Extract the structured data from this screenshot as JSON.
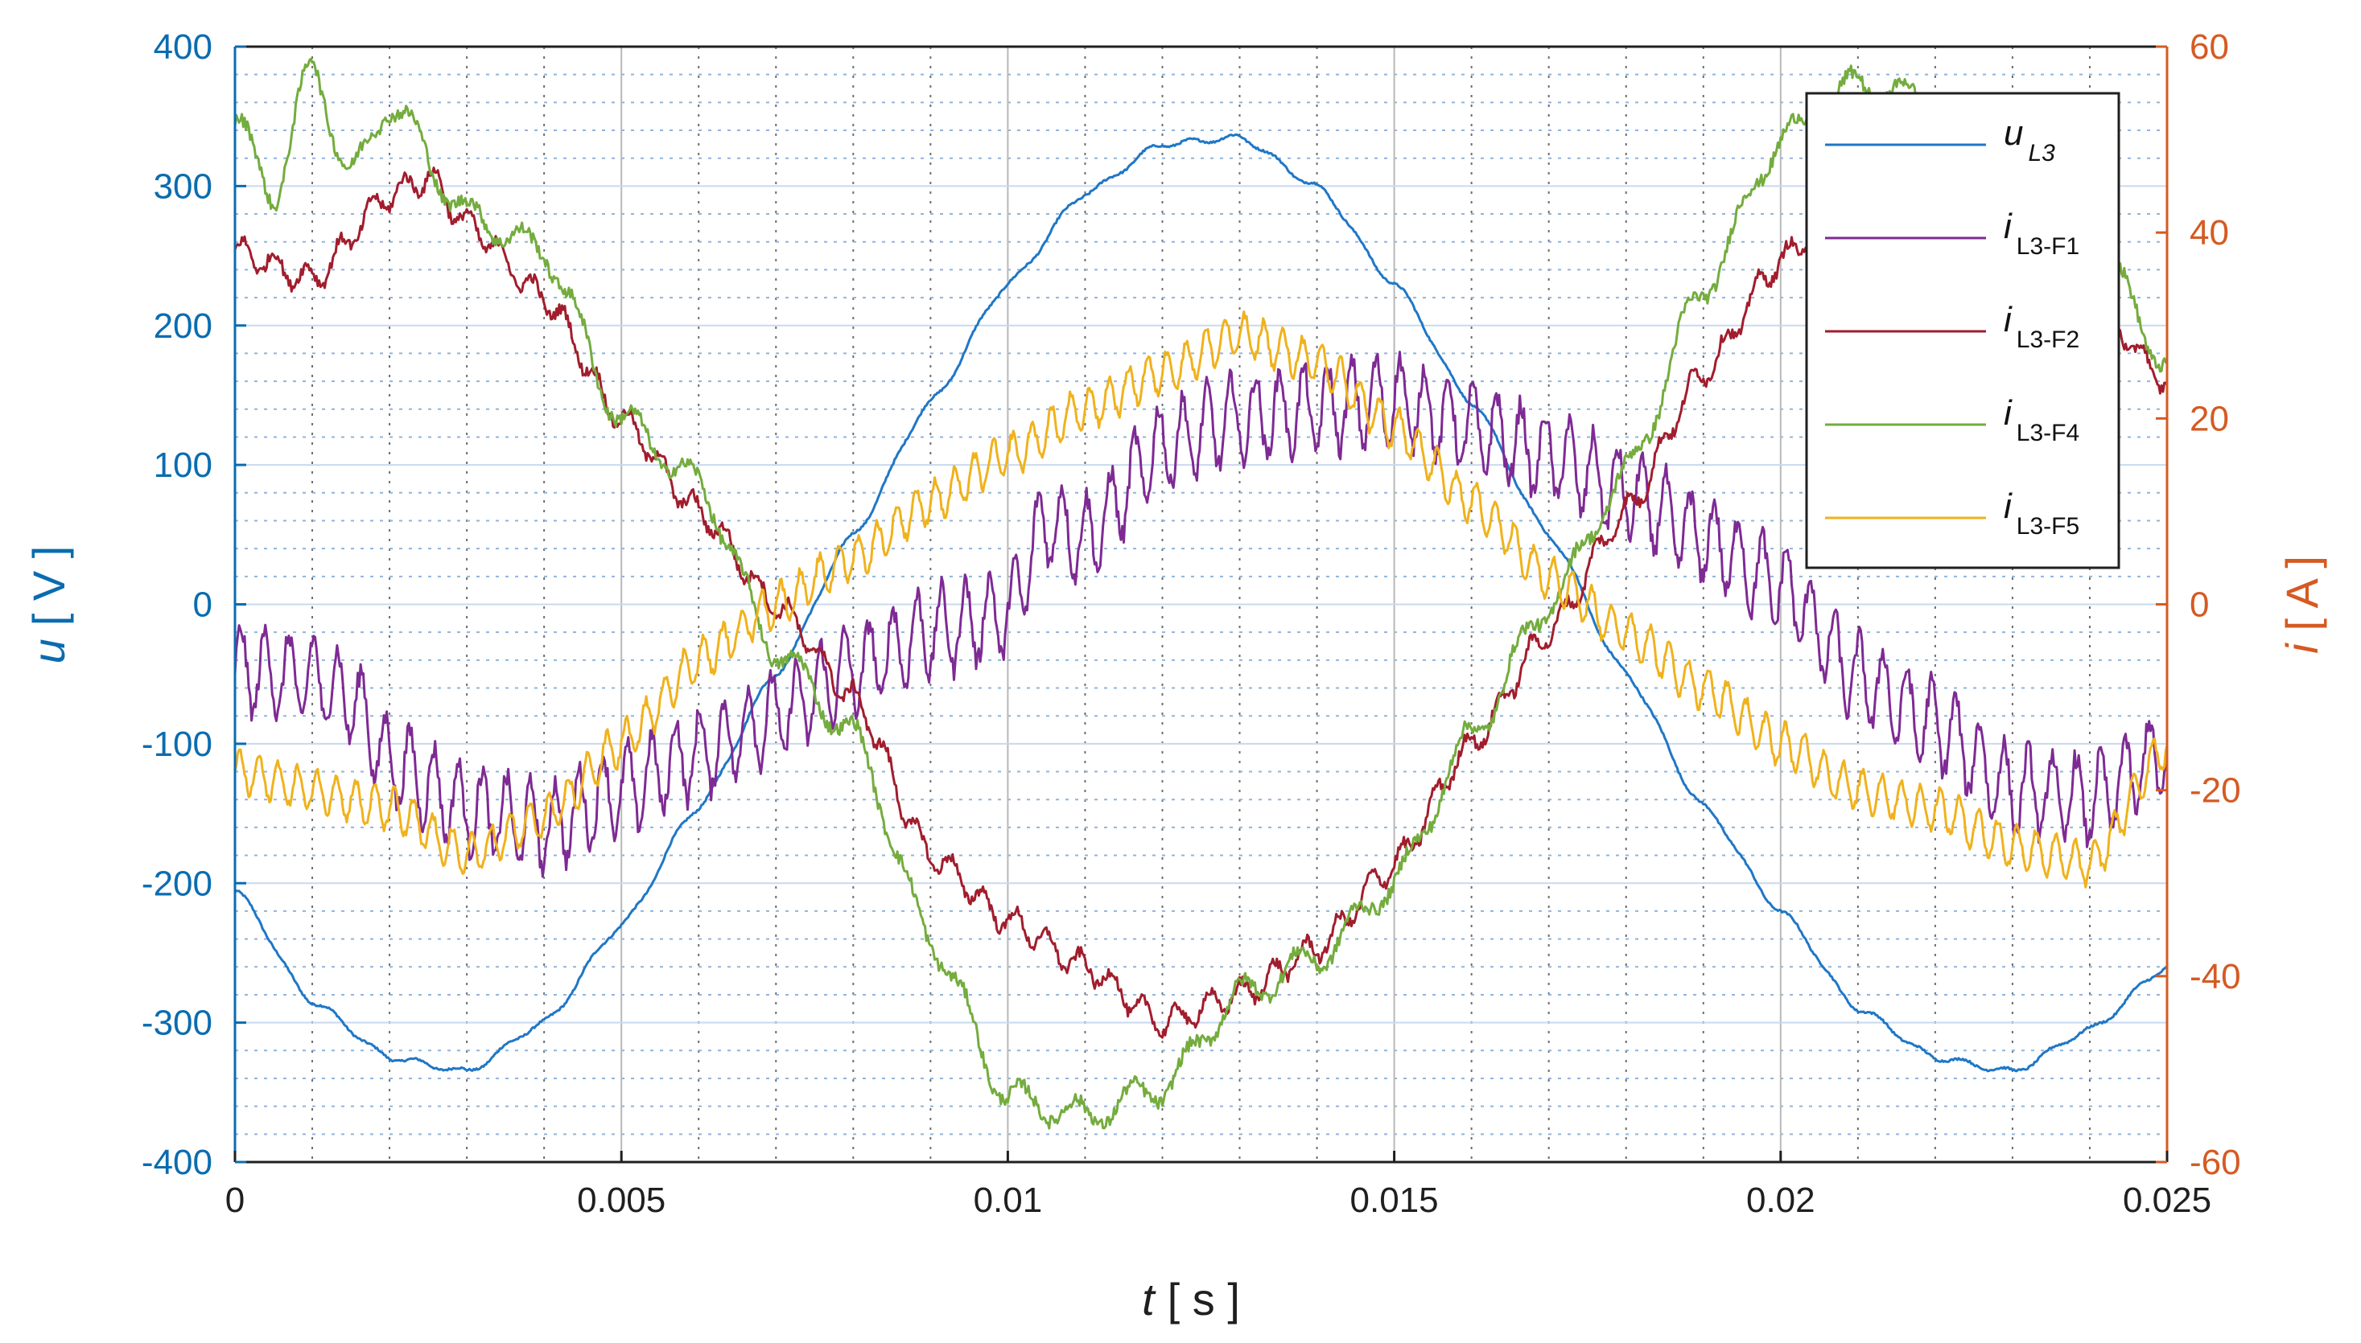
{
  "colors": {
    "u_axis": "#0a6cb0",
    "i_axis": "#d55a22",
    "u_L3": "#1f77c6",
    "i_L3_F1": "#7e2a94",
    "i_L3_F2": "#a11d2d",
    "i_L3_F4": "#74ac3e",
    "i_L3_F5": "#f0b21c"
  },
  "chart_data": {
    "type": "line",
    "xlabel": {
      "var": "t",
      "unit": "[ s ]"
    },
    "ylabel_left": {
      "var": "u",
      "unit": "[ V ]"
    },
    "ylabel_right": {
      "var": "i",
      "unit": "[ A ]"
    },
    "xlim": [
      0,
      0.025
    ],
    "ylim_left": [
      -400,
      400
    ],
    "ylim_right": [
      -60,
      60
    ],
    "x_ticks": [
      0,
      0.005,
      0.01,
      0.015,
      0.02,
      0.025
    ],
    "x_tick_labels": [
      "0",
      "0.005",
      "0.01",
      "0.015",
      "0.02",
      "0.025"
    ],
    "y_left_ticks": [
      -400,
      -300,
      -200,
      -100,
      0,
      100,
      200,
      300,
      400
    ],
    "y_left_tick_labels": [
      "-400",
      "-300",
      "-200",
      "-100",
      "0",
      "100",
      "200",
      "300",
      "400"
    ],
    "y_right_ticks": [
      -60,
      -40,
      -20,
      0,
      20,
      40,
      60
    ],
    "y_right_tick_labels": [
      "-60",
      "-40",
      "-20",
      "0",
      "20",
      "40",
      "60"
    ],
    "grid": true,
    "legend_position": "top-right",
    "series": [
      {
        "name": "u",
        "name_sub": "L3",
        "axis": "left",
        "x": [
          0,
          0.001,
          0.002,
          0.003,
          0.004,
          0.005,
          0.006,
          0.007,
          0.008,
          0.009,
          0.01,
          0.011,
          0.012,
          0.013,
          0.014,
          0.015,
          0.016,
          0.017,
          0.018,
          0.019,
          0.02,
          0.021,
          0.022,
          0.023,
          0.024,
          0.025
        ],
        "y": [
          -205,
          -285,
          -325,
          -335,
          -300,
          -230,
          -145,
          -50,
          50,
          145,
          230,
          295,
          330,
          335,
          300,
          230,
          145,
          50,
          -50,
          -145,
          -220,
          -290,
          -325,
          -335,
          -305,
          -260
        ]
      },
      {
        "name": "i",
        "name_sub": "L3-F1",
        "axis": "right",
        "x": [
          0,
          0.001,
          0.0015,
          0.002,
          0.003,
          0.004,
          0.005,
          0.006,
          0.007,
          0.008,
          0.009,
          0.01,
          0.0105,
          0.011,
          0.012,
          0.013,
          0.014,
          0.015,
          0.016,
          0.017,
          0.018,
          0.019,
          0.02,
          0.021,
          0.022,
          0.023,
          0.024,
          0.025
        ],
        "y": [
          -7,
          -8,
          -10,
          -17,
          -22,
          -24,
          -20,
          -16,
          -12,
          -7,
          -3,
          -1,
          9,
          7,
          17,
          20,
          21,
          22,
          19,
          16,
          12,
          7,
          2,
          -8,
          -13,
          -20,
          -21,
          -16
        ]
      },
      {
        "name": "i",
        "name_sub": "L3-F2",
        "axis": "right",
        "x": [
          0,
          0.001,
          0.002,
          0.0025,
          0.003,
          0.004,
          0.005,
          0.006,
          0.007,
          0.008,
          0.009,
          0.01,
          0.011,
          0.012,
          0.013,
          0.014,
          0.015,
          0.016,
          0.017,
          0.018,
          0.019,
          0.02,
          0.021,
          0.022,
          0.023,
          0.024,
          0.025
        ],
        "y": [
          38,
          35,
          44,
          46,
          41,
          33,
          20,
          10,
          0,
          -10,
          -27,
          -34,
          -39,
          -45,
          -42,
          -37,
          -28,
          -15,
          -3,
          10,
          25,
          37,
          45,
          46,
          40,
          33,
          24
        ]
      },
      {
        "name": "i",
        "name_sub": "L3-F4",
        "axis": "right",
        "x": [
          0,
          0.0005,
          0.001,
          0.0015,
          0.002,
          0.003,
          0.004,
          0.005,
          0.006,
          0.007,
          0.008,
          0.009,
          0.01,
          0.011,
          0.012,
          0.013,
          0.014,
          0.015,
          0.016,
          0.017,
          0.018,
          0.019,
          0.02,
          0.021,
          0.022,
          0.023,
          0.024,
          0.025
        ],
        "y": [
          52,
          44,
          58,
          46,
          54,
          42,
          38,
          20,
          13,
          -5,
          -14,
          -36,
          -53,
          -55,
          -52,
          -42,
          -38,
          -30,
          -14,
          0,
          14,
          34,
          50,
          56,
          54,
          48,
          40,
          26
        ]
      },
      {
        "name": "i",
        "name_sub": "L3-F5",
        "axis": "right",
        "x": [
          0,
          0.001,
          0.002,
          0.003,
          0.004,
          0.005,
          0.006,
          0.007,
          0.008,
          0.009,
          0.01,
          0.011,
          0.012,
          0.013,
          0.014,
          0.015,
          0.016,
          0.017,
          0.018,
          0.019,
          0.02,
          0.021,
          0.022,
          0.023,
          0.024,
          0.025
        ],
        "y": [
          -18,
          -20,
          -22,
          -27,
          -23,
          -15,
          -6,
          0,
          5,
          11,
          16,
          21,
          25,
          29,
          26,
          19,
          11,
          3,
          -3,
          -9,
          -15,
          -20,
          -22,
          -26,
          -28,
          -15
        ]
      }
    ]
  }
}
